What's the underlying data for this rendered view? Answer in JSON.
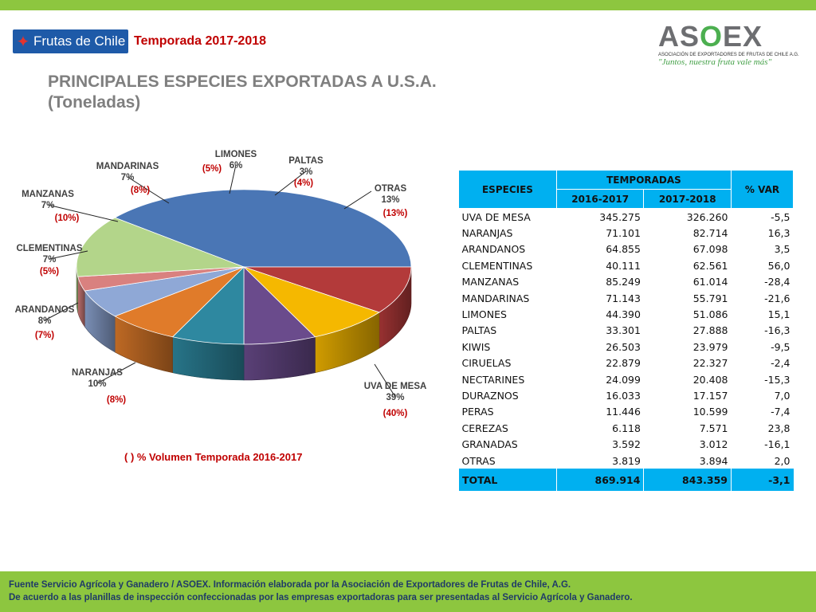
{
  "header": {
    "brand_left": "Frutas de Chile",
    "season": "Temporada 2017-2018",
    "brand_right": {
      "name_pre": "AS",
      "name_o": "O",
      "name_post": "EX",
      "subtitle": "ASOCIACIÓN DE EXPORTADORES DE FRUTAS DE CHILE A.G.",
      "tagline": "\"Juntos, nuestra fruta vale más\""
    }
  },
  "title_line1": "PRINCIPALES ESPECIES EXPORTADAS A U.S.A.",
  "title_line2": "(Toneladas)",
  "chart_note": "( ) % Volumen Temporada 2016-2017",
  "chart_data": {
    "type": "pie",
    "title": "",
    "slices": [
      {
        "label": "UVA DE MESA",
        "pct": 39,
        "prev_pct": "(40%)",
        "color": "#4a76b5"
      },
      {
        "label": "NARANJAS",
        "pct": 10,
        "prev_pct": "(8%)",
        "color": "#b33a3a"
      },
      {
        "label": "ARANDANOS",
        "pct": 8,
        "prev_pct": "(7%)",
        "color": "#f5b800"
      },
      {
        "label": "CLEMENTINAS",
        "pct": 7,
        "prev_pct": "(5%)",
        "color": "#6a4b8c"
      },
      {
        "label": "MANZANAS",
        "pct": 7,
        "prev_pct": "(10%)",
        "color": "#2e88a0"
      },
      {
        "label": "MANDARINAS",
        "pct": 7,
        "prev_pct": "(8%)",
        "color": "#e07b2a"
      },
      {
        "label": "LIMONES",
        "pct": 6,
        "prev_pct": "(5%)",
        "color": "#8fa8d6"
      },
      {
        "label": "PALTAS",
        "pct": 3,
        "prev_pct": "(4%)",
        "color": "#d9817f"
      },
      {
        "label": "OTRAS",
        "pct": 13,
        "prev_pct": "(13%)",
        "color": "#b3d58a"
      }
    ]
  },
  "table": {
    "col_species": "ESPECIES",
    "col_group": "TEMPORADAS",
    "col_var": "% VAR",
    "col_y1": "2016-2017",
    "col_y2": "2017-2018",
    "rows": [
      {
        "name": "UVA DE MESA",
        "y1": "345.275",
        "y2": "326.260",
        "var": "-5,5"
      },
      {
        "name": "NARANJAS",
        "y1": "71.101",
        "y2": "82.714",
        "var": "16,3"
      },
      {
        "name": "ARANDANOS",
        "y1": "64.855",
        "y2": "67.098",
        "var": "3,5"
      },
      {
        "name": "CLEMENTINAS",
        "y1": "40.111",
        "y2": "62.561",
        "var": "56,0"
      },
      {
        "name": "MANZANAS",
        "y1": "85.249",
        "y2": "61.014",
        "var": "-28,4"
      },
      {
        "name": "MANDARINAS",
        "y1": "71.143",
        "y2": "55.791",
        "var": "-21,6"
      },
      {
        "name": "LIMONES",
        "y1": "44.390",
        "y2": "51.086",
        "var": "15,1"
      },
      {
        "name": "PALTAS",
        "y1": "33.301",
        "y2": "27.888",
        "var": "-16,3"
      },
      {
        "name": "KIWIS",
        "y1": "26.503",
        "y2": "23.979",
        "var": "-9,5"
      },
      {
        "name": "CIRUELAS",
        "y1": "22.879",
        "y2": "22.327",
        "var": "-2,4"
      },
      {
        "name": "NECTARINES",
        "y1": "24.099",
        "y2": "20.408",
        "var": "-15,3"
      },
      {
        "name": "DURAZNOS",
        "y1": "16.033",
        "y2": "17.157",
        "var": "7,0"
      },
      {
        "name": "PERAS",
        "y1": "11.446",
        "y2": "10.599",
        "var": "-7,4"
      },
      {
        "name": "CEREZAS",
        "y1": "6.118",
        "y2": "7.571",
        "var": "23,8"
      },
      {
        "name": "GRANADAS",
        "y1": "3.592",
        "y2": "3.012",
        "var": "-16,1"
      },
      {
        "name": "OTRAS",
        "y1": "3.819",
        "y2": "3.894",
        "var": "2,0"
      }
    ],
    "total": {
      "name": "TOTAL",
      "y1": "869.914",
      "y2": "843.359",
      "var": "-3,1"
    }
  },
  "footer": {
    "line1": "Fuente Servicio Agrícola y Ganadero / ASOEX. Información elaborada por la Asociación de Exportadores de  Frutas de Chile, A.G.",
    "line2": "De acuerdo a las planillas de inspección confeccionadas por las empresas exportadoras  para ser presentadas al Servicio Agrícola y Ganadero."
  }
}
